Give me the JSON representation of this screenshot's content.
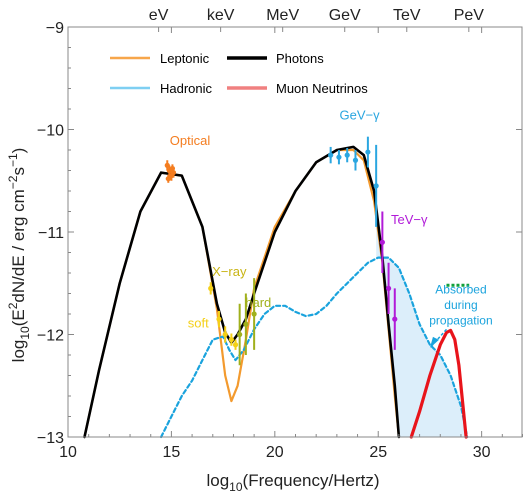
{
  "chart_data": {
    "type": "line",
    "xlabel_pre": "log",
    "xlabel_sub": "10",
    "xlabel_post": "(Frequency/Hertz)",
    "ylabel_pre": "log",
    "ylabel_sub": "10",
    "ylabel_mid1": "(E",
    "ylabel_sup1": "2",
    "ylabel_mid2": "dN/dE / erg cm",
    "ylabel_sup2": "−2",
    "ylabel_mid3": "s",
    "ylabel_sup3": "−1",
    "ylabel_end": ")",
    "xlim": [
      10,
      32
    ],
    "ylim": [
      -13,
      -9
    ],
    "x_ticks": [
      10,
      15,
      20,
      25,
      30
    ],
    "y_ticks": [
      -13,
      -12,
      -11,
      -10,
      -9
    ],
    "y_tick_labels": [
      "−13",
      "−12",
      "−11",
      "−10",
      "−9"
    ],
    "top_axis": [
      {
        "label": "eV",
        "x": 14.38
      },
      {
        "label": "keV",
        "x": 17.38
      },
      {
        "label": "MeV",
        "x": 20.38
      },
      {
        "label": "GeV",
        "x": 23.38
      },
      {
        "label": "TeV",
        "x": 26.38
      },
      {
        "label": "PeV",
        "x": 29.38
      }
    ],
    "legend": [
      {
        "name": "Leptonic",
        "color": "#F7A64A"
      },
      {
        "name": "Hadronic",
        "color": "#7ECFF2"
      },
      {
        "name": "Photons",
        "color": "#000000"
      },
      {
        "name": "Muon Neutrinos",
        "color": "#F08080"
      }
    ],
    "series": [
      {
        "key": "leptonic",
        "color": "#F39A2E",
        "style": "solid",
        "x": [
          10.8,
          11.5,
          12.5,
          13.5,
          14.5,
          15.5,
          16.5,
          17.2,
          17.6,
          17.9,
          18.2,
          18.6,
          19.0,
          20.0,
          21.0,
          22.0,
          23.0,
          23.8,
          24.3,
          24.8,
          25.2,
          25.5,
          25.8,
          26.0
        ],
        "y": [
          -13,
          -12.35,
          -11.5,
          -10.8,
          -10.42,
          -10.45,
          -10.95,
          -11.75,
          -12.4,
          -12.65,
          -12.5,
          -12.05,
          -11.55,
          -10.95,
          -10.6,
          -10.32,
          -10.2,
          -10.2,
          -10.3,
          -10.7,
          -11.3,
          -11.95,
          -12.6,
          -13
        ]
      },
      {
        "key": "hadronic",
        "color": "#1AA3DD",
        "style": "dashed",
        "x": [
          14.5,
          15.0,
          15.5,
          16.0,
          16.5,
          17.0,
          17.5,
          17.8,
          18.1,
          18.5,
          19.0,
          19.5,
          20.0,
          20.5,
          21.0,
          21.5,
          22.0,
          22.5,
          23.0,
          23.5,
          24.0,
          24.5,
          25.0,
          25.5,
          26.0,
          26.5,
          27.0,
          27.5,
          28.0,
          28.5,
          29.0,
          29.3
        ],
        "y": [
          -13,
          -12.8,
          -12.6,
          -12.45,
          -12.25,
          -12.05,
          -12.02,
          -12.15,
          -12.25,
          -12.15,
          -11.95,
          -11.8,
          -11.72,
          -11.72,
          -11.78,
          -11.82,
          -11.8,
          -11.72,
          -11.6,
          -11.5,
          -11.4,
          -11.3,
          -11.25,
          -11.25,
          -11.35,
          -11.6,
          -11.9,
          -12.1,
          -12.2,
          -12.4,
          -12.7,
          -13
        ]
      },
      {
        "key": "photons",
        "color": "#000000",
        "style": "solid",
        "x": [
          10.8,
          11.5,
          12.5,
          13.5,
          14.5,
          15.5,
          16.5,
          17.2,
          17.6,
          17.9,
          18.2,
          18.6,
          19.0,
          20.0,
          21.0,
          22.0,
          23.0,
          23.8,
          24.3,
          24.8,
          25.2,
          25.5,
          25.8,
          26.0
        ],
        "y": [
          -13,
          -12.35,
          -11.5,
          -10.8,
          -10.42,
          -10.45,
          -10.95,
          -11.7,
          -11.98,
          -12.08,
          -12.0,
          -11.85,
          -11.6,
          -11.0,
          -10.6,
          -10.32,
          -10.2,
          -10.17,
          -10.25,
          -10.6,
          -11.25,
          -11.9,
          -12.5,
          -13
        ]
      },
      {
        "key": "neutrinos",
        "color": "#E8141B",
        "style": "solid",
        "x": [
          26.6,
          27.0,
          27.5,
          28.0,
          28.3,
          28.5,
          28.7,
          28.9,
          29.1,
          29.25
        ],
        "y": [
          -13,
          -12.75,
          -12.4,
          -12.1,
          -11.98,
          -11.96,
          -12.05,
          -12.3,
          -12.7,
          -13
        ]
      }
    ],
    "absorbed_region": {
      "upper_x": [
        24.9,
        25.2,
        25.5,
        26.0,
        26.5,
        27.0,
        27.5,
        28.0,
        28.5,
        29.0,
        29.3
      ],
      "upper_y": [
        -11.25,
        -11.25,
        -11.25,
        -11.35,
        -11.6,
        -11.9,
        -12.1,
        -12.2,
        -12.4,
        -12.7,
        -13
      ],
      "lower_x": [
        24.9,
        25.2,
        25.5,
        25.8,
        26.0
      ],
      "lower_y": [
        -10.8,
        -11.3,
        -11.95,
        -12.6,
        -13
      ],
      "color": "#DCEEFA"
    },
    "points": [
      {
        "group": "optical",
        "color": "#F47D20",
        "data": [
          [
            14.8,
            -10.35,
            0.05
          ],
          [
            14.9,
            -10.4,
            0.05
          ],
          [
            15.0,
            -10.45,
            0.05
          ],
          [
            15.1,
            -10.42,
            0.05
          ],
          [
            14.85,
            -10.48,
            0.04
          ],
          [
            15.05,
            -10.38,
            0.04
          ]
        ]
      },
      {
        "group": "xray",
        "color": "#F4D018",
        "data": [
          [
            16.9,
            -11.55,
            0.06
          ],
          [
            17.3,
            -11.85,
            0.08
          ],
          [
            17.6,
            -12.0,
            0.08
          ],
          [
            17.9,
            -12.05,
            0.06
          ],
          [
            18.1,
            -12.1,
            0.05
          ]
        ]
      },
      {
        "group": "hard",
        "color": "#A0B01C",
        "data": [
          [
            18.3,
            -12.0,
            0.3
          ],
          [
            18.6,
            -11.9,
            0.3
          ],
          [
            19.0,
            -11.8,
            0.35
          ]
        ]
      },
      {
        "group": "gev",
        "color": "#2AA6E0",
        "data": [
          [
            22.7,
            -10.25,
            0.08
          ],
          [
            23.1,
            -10.27,
            0.07
          ],
          [
            23.5,
            -10.25,
            0.07
          ],
          [
            23.9,
            -10.3,
            0.1
          ],
          [
            24.5,
            -10.22,
            0.15
          ],
          [
            24.9,
            -10.55,
            0.4
          ]
        ]
      },
      {
        "group": "tev",
        "color": "#B11BD8",
        "data": [
          [
            25.2,
            -11.1,
            0.3
          ],
          [
            25.5,
            -11.55,
            0.25
          ],
          [
            25.8,
            -11.85,
            0.3
          ]
        ]
      }
    ],
    "green_marker": {
      "x1": 28.3,
      "x2": 29.4,
      "y": -11.52,
      "color": "#11A03A"
    },
    "annotations": [
      {
        "key": "optical",
        "text": "Optical",
        "x": 15.9,
        "y": -10.15,
        "color": "#F47D20"
      },
      {
        "key": "gevlabel",
        "text": "GeV−γ",
        "x": 24.1,
        "y": -9.9,
        "color": "#2AA6E0"
      },
      {
        "key": "tevlabel",
        "text": "TeV−γ",
        "x": 26.5,
        "y": -10.92,
        "color": "#B11BD8"
      },
      {
        "key": "xraylabel",
        "text": "X−ray",
        "x": 17.8,
        "y": -11.43,
        "color": "#C8B414"
      },
      {
        "key": "hardlabel",
        "text": "hard",
        "x": 19.2,
        "y": -11.73,
        "color": "#A0B01C"
      },
      {
        "key": "softlabel",
        "text": "soft",
        "x": 16.3,
        "y": -11.93,
        "color": "#F4D018"
      },
      {
        "key": "absorbed1",
        "text": "Absorbed",
        "x": 29.0,
        "y": -11.6,
        "color": "#1AA3DD"
      },
      {
        "key": "absorbed2",
        "text": "during",
        "x": 29.0,
        "y": -11.75,
        "color": "#1AA3DD"
      },
      {
        "key": "absorbed3",
        "text": "propagation",
        "x": 29.0,
        "y": -11.9,
        "color": "#1AA3DD"
      }
    ]
  }
}
